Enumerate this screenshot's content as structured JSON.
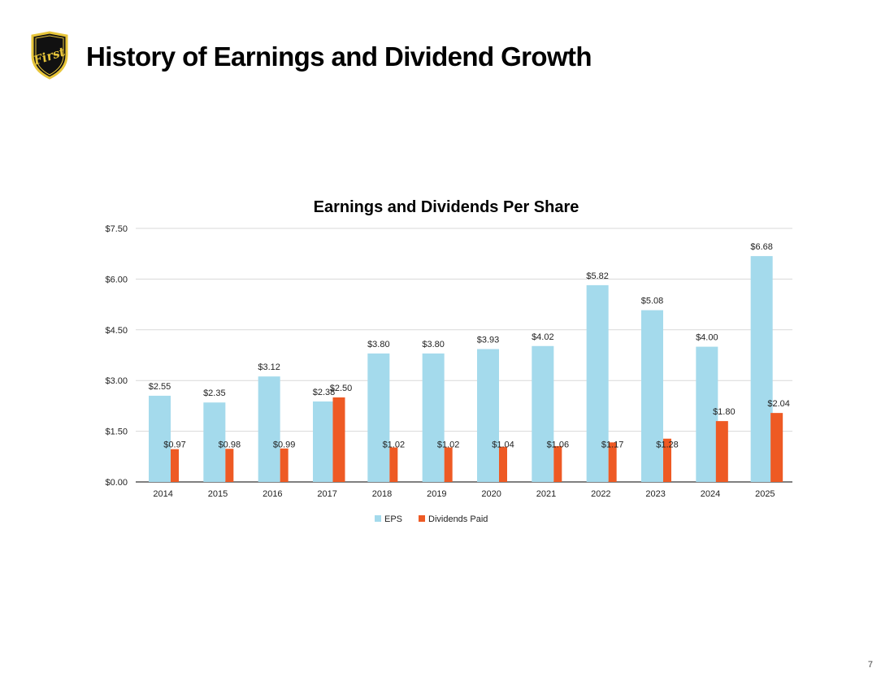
{
  "header": {
    "title": "History of Earnings and Dividend Growth",
    "logo_text": "First"
  },
  "footer": {
    "page_number": "7"
  },
  "colors": {
    "eps": "#A4DAEC",
    "dividends": "#EE5A24",
    "logo_gold": "#E7C53A",
    "logo_black": "#111111"
  },
  "chart_data": {
    "type": "bar",
    "title": "Earnings and Dividends Per Share",
    "categories": [
      "2014",
      "2015",
      "2016",
      "2017",
      "2018",
      "2019",
      "2020",
      "2021",
      "2022",
      "2023",
      "2024",
      "2025"
    ],
    "series": [
      {
        "name": "EPS",
        "values": [
          2.55,
          2.35,
          3.12,
          2.38,
          3.8,
          3.8,
          3.93,
          4.02,
          5.82,
          5.08,
          4.0,
          6.68
        ],
        "labels": [
          "$2.55",
          "$2.35",
          "$3.12",
          "$2.38",
          "$3.80",
          "$3.80",
          "$3.93",
          "$4.02",
          "$5.82",
          "$5.08",
          "$4.00",
          "$6.68"
        ]
      },
      {
        "name": "Dividends Paid",
        "values": [
          0.97,
          0.98,
          0.99,
          2.5,
          1.02,
          1.02,
          1.04,
          1.06,
          1.17,
          1.28,
          1.8,
          2.04
        ],
        "labels": [
          "$0.97",
          "$0.98",
          "$0.99",
          "$2.50",
          "$1.02",
          "$1.02",
          "$1.04",
          "$1.06",
          "$1.17",
          "$1.28",
          "$1.80",
          "$2.04"
        ]
      }
    ],
    "ylim": [
      0,
      7.5
    ],
    "yticks": [
      0,
      1.5,
      3.0,
      4.5,
      6.0,
      7.5
    ],
    "ytick_labels": [
      "$0.00",
      "$1.50",
      "$3.00",
      "$4.50",
      "$6.00",
      "$7.50"
    ],
    "xlabel": "",
    "ylabel": "",
    "grid": true,
    "legend_position": "bottom"
  }
}
